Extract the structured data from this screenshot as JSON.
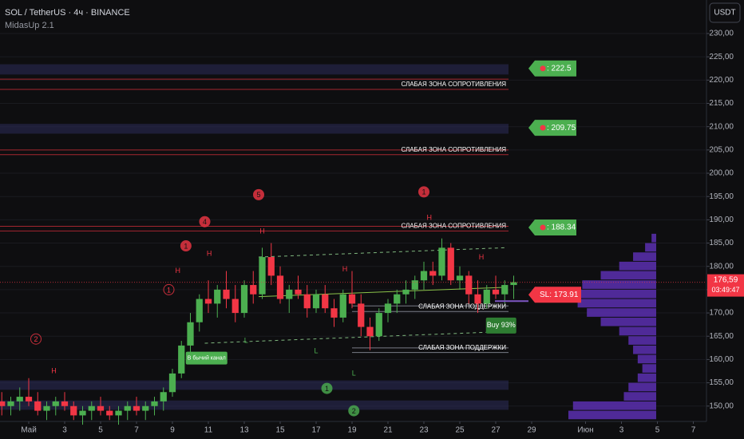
{
  "chart_data": {
    "type": "candlestick",
    "title": "SOL / TetherUS · 4ч · BINANCE",
    "subtitle": "MidasUp 2.1",
    "currency": "USDT",
    "up_color": "#4caf50",
    "down_color": "#f23645",
    "xlim": [
      -1.6,
      37.733
    ],
    "ylim": [
      146.7,
      237.2
    ],
    "xticks": [
      {
        "value": 0,
        "label": "Май"
      },
      {
        "value": 2,
        "label": "3"
      },
      {
        "value": 4,
        "label": "5"
      },
      {
        "value": 6,
        "label": "7"
      },
      {
        "value": 8,
        "label": "9"
      },
      {
        "value": 10,
        "label": "11"
      },
      {
        "value": 12,
        "label": "13"
      },
      {
        "value": 14,
        "label": "15"
      },
      {
        "value": 16,
        "label": "17"
      },
      {
        "value": 18,
        "label": "19"
      },
      {
        "value": 20,
        "label": "21"
      },
      {
        "value": 22,
        "label": "23"
      },
      {
        "value": 24,
        "label": "25"
      },
      {
        "value": 26,
        "label": "27"
      },
      {
        "value": 28,
        "label": "29"
      },
      {
        "value": 31,
        "label": "Июн"
      },
      {
        "value": 33,
        "label": "3"
      },
      {
        "value": 35,
        "label": "5"
      },
      {
        "value": 37,
        "label": "7"
      }
    ],
    "yticks": [
      {
        "value": 150,
        "label": "150,00"
      },
      {
        "value": 155,
        "label": "155,00"
      },
      {
        "value": 160,
        "label": "160,00"
      },
      {
        "value": 165,
        "label": "165,00"
      },
      {
        "value": 170,
        "label": "170,00"
      },
      {
        "value": 175,
        "label": "175,00"
      },
      {
        "value": 180,
        "label": "180,00"
      },
      {
        "value": 185,
        "label": "185,00"
      },
      {
        "value": 190,
        "label": "190,00"
      },
      {
        "value": 195,
        "label": "195,00"
      },
      {
        "value": 200,
        "label": "200,00"
      },
      {
        "value": 205,
        "label": "205,00"
      },
      {
        "value": 210,
        "label": "210,00"
      },
      {
        "value": 215,
        "label": "215,00"
      },
      {
        "value": 220,
        "label": "220,00"
      },
      {
        "value": 225,
        "label": "225,00"
      },
      {
        "value": 230,
        "label": "230,00"
      }
    ],
    "x": [
      -1.5,
      -1,
      -0.5,
      0,
      0.5,
      1,
      1.5,
      2,
      2.5,
      3,
      3.5,
      4,
      4.5,
      5,
      5.5,
      6,
      6.5,
      7,
      7.5,
      8,
      8.5,
      9,
      9.5,
      10,
      10.5,
      11,
      11.5,
      12,
      12.5,
      13,
      13.5,
      14,
      14.5,
      15,
      15.5,
      16,
      16.5,
      17,
      17.5,
      18,
      18.5,
      19,
      19.5,
      20,
      20.5,
      21,
      21.5,
      22,
      22.5,
      23,
      23.5,
      24,
      24.5,
      25,
      25.5,
      26,
      26.5,
      27
    ],
    "open": [
      151,
      150,
      151,
      152,
      151,
      149,
      150,
      151,
      150,
      148,
      149,
      150,
      149,
      148,
      149,
      150,
      149,
      150,
      151,
      153,
      157,
      163,
      168,
      173,
      172,
      175,
      173,
      170,
      176,
      174,
      182,
      178,
      173,
      175,
      174,
      171,
      174,
      171,
      169,
      174,
      172,
      167,
      165,
      170,
      172,
      174,
      175,
      177,
      179,
      178,
      184,
      177,
      178,
      174,
      172,
      175,
      174,
      176
    ],
    "high": [
      153,
      152,
      154,
      156,
      153,
      151,
      152,
      153,
      151,
      150,
      151,
      152,
      150,
      150,
      151,
      152,
      151,
      152,
      154,
      158,
      164,
      170,
      174,
      177,
      176,
      179,
      176,
      177,
      179,
      184,
      185,
      180,
      176,
      178,
      176,
      175,
      176,
      173,
      175,
      179,
      174,
      169,
      171,
      173,
      175,
      177,
      178,
      181,
      181,
      186,
      185,
      180,
      179,
      177,
      176,
      178,
      177,
      178
    ],
    "low": [
      148,
      148,
      149,
      150,
      148,
      147,
      148,
      149,
      147,
      146,
      147,
      148,
      147,
      146,
      147,
      148,
      147,
      148,
      149,
      152,
      156,
      161,
      166,
      170,
      169,
      171,
      168,
      169,
      172,
      173,
      176,
      172,
      170,
      173,
      169,
      170,
      170,
      167,
      168,
      171,
      165,
      162,
      164,
      168,
      170,
      172,
      173,
      175,
      176,
      177,
      176,
      175,
      172,
      170,
      171,
      173,
      172,
      173
    ],
    "close": [
      150,
      151,
      152,
      151,
      149,
      150,
      151,
      150,
      148,
      149,
      150,
      149,
      148,
      149,
      150,
      149,
      150,
      151,
      153,
      157,
      163,
      168,
      173,
      172,
      175,
      173,
      170,
      176,
      174,
      182,
      178,
      173,
      175,
      174,
      171,
      174,
      171,
      169,
      174,
      172,
      167,
      165,
      170,
      172,
      174,
      175,
      177,
      179,
      178,
      184,
      177,
      178,
      174,
      172,
      175,
      174,
      176,
      176.59
    ],
    "last_price": {
      "value": 176.59,
      "label": "176,59",
      "countdown": "03:49:47"
    },
    "bands": [
      {
        "top": 223.4,
        "bottom": 221.2
      },
      {
        "top": 210.6,
        "bottom": 208.5
      },
      {
        "top": 155.5,
        "bottom": 153.5
      },
      {
        "top": 151.2,
        "bottom": 149.2
      }
    ],
    "zones": [
      {
        "label": "СЛАБАЯ ЗОНА СОПРОТИВЛЕНИЯ",
        "top": 220.2,
        "bottom": 218,
        "kind": "resistance"
      },
      {
        "label": "СЛАБАЯ ЗОНА СОПРОТИВЛЕНИЯ",
        "top": 205,
        "bottom": 204,
        "kind": "resistance"
      },
      {
        "label": "СЛАБАЯ ЗОНА СОПРОТИВЛЕНИЯ",
        "top": 188.6,
        "bottom": 187.6,
        "kind": "resistance"
      },
      {
        "label": "СЛАБАЯ ЗОНА ПОДДЕРЖКИ",
        "top": 171.5,
        "bottom": 170.3,
        "kind": "support"
      },
      {
        "label": "СЛАБАЯ ЗОНА ПОДДЕРЖКИ",
        "top": 162.5,
        "bottom": 161.5,
        "kind": "support"
      }
    ],
    "targets": [
      {
        "value": 222.5,
        "label": ": 222.5"
      },
      {
        "value": 209.75,
        "label": ": 209.75"
      },
      {
        "value": 188.34,
        "label": ": 188.34"
      }
    ],
    "stop_loss": {
      "value": 173.91,
      "label": "SL: 173.91"
    },
    "signal": {
      "label": "Buy 93%",
      "x": 26.3,
      "y": 167.3
    },
    "channel_label": {
      "label": "В бычий канал",
      "x": 9.9,
      "y": 160.3
    },
    "channel": {
      "upper": {
        "x": [
          12.8,
          26.5
        ],
        "y": [
          182,
          184
        ]
      },
      "lower": {
        "x": [
          9.8,
          26.5
        ],
        "y": [
          163.5,
          166
        ]
      },
      "mid": {
        "x": [
          12.8,
          26.5
        ],
        "y": [
          173.5,
          175.5
        ]
      }
    },
    "waves": [
      {
        "text": "2",
        "x": 0.4,
        "y": 164.4,
        "filled": false,
        "color": "#f23645"
      },
      {
        "text": "1",
        "x": 7.8,
        "y": 175,
        "filled": false,
        "color": "#f23645"
      },
      {
        "text": "1",
        "x": 8.75,
        "y": 184.4,
        "filled": true,
        "color": "#f23645"
      },
      {
        "text": "4",
        "x": 9.8,
        "y": 189.6,
        "filled": true,
        "color": "#f23645"
      },
      {
        "text": "5",
        "x": 12.8,
        "y": 195.4,
        "filled": true,
        "color": "#f23645"
      },
      {
        "text": "1",
        "x": 22,
        "y": 196,
        "filled": true,
        "color": "#f23645"
      },
      {
        "text": "1",
        "x": 16.6,
        "y": 153.8,
        "filled": true,
        "color": "#4caf50"
      },
      {
        "text": "2",
        "x": 18.1,
        "y": 149,
        "filled": true,
        "color": "#4caf50"
      }
    ],
    "pivots": [
      {
        "text": "H",
        "x": 1.4,
        "y": 157.5
      },
      {
        "text": "H",
        "x": 8.3,
        "y": 179
      },
      {
        "text": "H",
        "x": 10.05,
        "y": 182.7
      },
      {
        "text": "H",
        "x": 13,
        "y": 187.5
      },
      {
        "text": "H",
        "x": 17.6,
        "y": 179.3
      },
      {
        "text": "H",
        "x": 22.3,
        "y": 190.4
      },
      {
        "text": "H",
        "x": 25.2,
        "y": 181.9
      },
      {
        "text": "L",
        "x": 12.1,
        "y": 164
      },
      {
        "text": "L",
        "x": 16,
        "y": 161.8
      },
      {
        "text": "L",
        "x": 18.1,
        "y": 157
      },
      {
        "text": "L",
        "x": 25.8,
        "y": 166.6
      }
    ],
    "volume_profile": {
      "levels": [
        148,
        150,
        152,
        154,
        156,
        158,
        160,
        162,
        164,
        166,
        168,
        170,
        172,
        174,
        176,
        178,
        180,
        182,
        184,
        186
      ],
      "values": [
        95,
        90,
        35,
        30,
        20,
        15,
        20,
        25,
        30,
        40,
        60,
        75,
        85,
        90,
        80,
        60,
        40,
        25,
        12,
        5
      ]
    }
  }
}
